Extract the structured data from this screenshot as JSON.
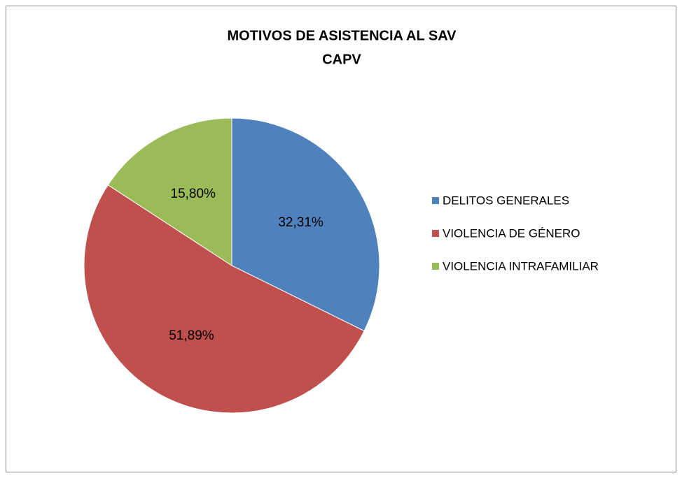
{
  "chart_data": {
    "type": "pie",
    "title": [
      "MOTIVOS DE ASISTENCIA AL SAV",
      "CAPV"
    ],
    "categories": [
      "DELITOS GENERALES",
      "VIOLENCIA DE GÉNERO",
      "VIOLENCIA INTRAFAMILIAR"
    ],
    "values": [
      32.31,
      51.89,
      15.8
    ],
    "value_labels": [
      "32,31%",
      "51,89%",
      "15,80%"
    ],
    "colors": [
      "#4f81bd",
      "#c0504d",
      "#9bbb59"
    ],
    "legend": "right"
  }
}
